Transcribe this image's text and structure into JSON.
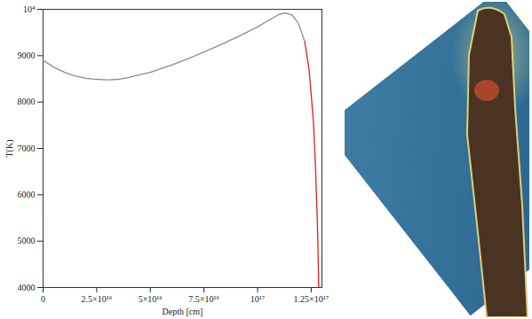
{
  "chart_data": {
    "type": "line",
    "xlabel": "Depth [cm]",
    "ylabel": "T(K)",
    "x": [
      0,
      5000000000000000.0,
      1e+16,
      1.5e+16,
      2e+16,
      2.5e+16,
      3e+16,
      3.5e+16,
      4e+16,
      5e+16,
      6e+16,
      7e+16,
      8e+16,
      9e+16,
      1e+17,
      1.05e+17,
      1.1e+17,
      1.13e+17,
      1.16e+17,
      1.19e+17,
      1.22e+17,
      1.24e+17,
      1.26e+17,
      1.27e+17,
      1.28e+17,
      1.285e+17
    ],
    "series": [
      {
        "color": "#8c8c8c",
        "values": [
          8900,
          8750,
          8640,
          8560,
          8510,
          8490,
          8480,
          8490,
          8530,
          8640,
          8800,
          8980,
          9180,
          9390,
          9620,
          9760,
          9890,
          9920,
          9880,
          9700,
          9300,
          null,
          null,
          null,
          null,
          null
        ]
      },
      {
        "color": "#e0201a",
        "values": [
          null,
          null,
          null,
          null,
          null,
          null,
          null,
          null,
          null,
          null,
          null,
          null,
          null,
          null,
          null,
          null,
          null,
          null,
          null,
          null,
          9300,
          8700,
          7600,
          6600,
          5200,
          4000
        ]
      }
    ],
    "xlim": [
      0,
      1.3e+17
    ],
    "ylim": [
      4000,
      10000
    ],
    "xticks": [
      0,
      {
        "value": 2.5e+16,
        "label": "2.5×10¹⁶"
      },
      {
        "value": 5e+16,
        "label": "5×10¹⁶"
      },
      {
        "value": 7.5e+16,
        "label": "7.5×10¹⁶"
      },
      {
        "value": 1e+17,
        "label": "10¹⁷"
      },
      {
        "value": 1.25e+17,
        "label": "1.25×10¹⁷"
      }
    ],
    "yticks": [
      4000,
      5000,
      6000,
      7000,
      8000,
      9000,
      {
        "value": 10000,
        "label": "10⁴"
      }
    ],
    "grid": false
  }
}
